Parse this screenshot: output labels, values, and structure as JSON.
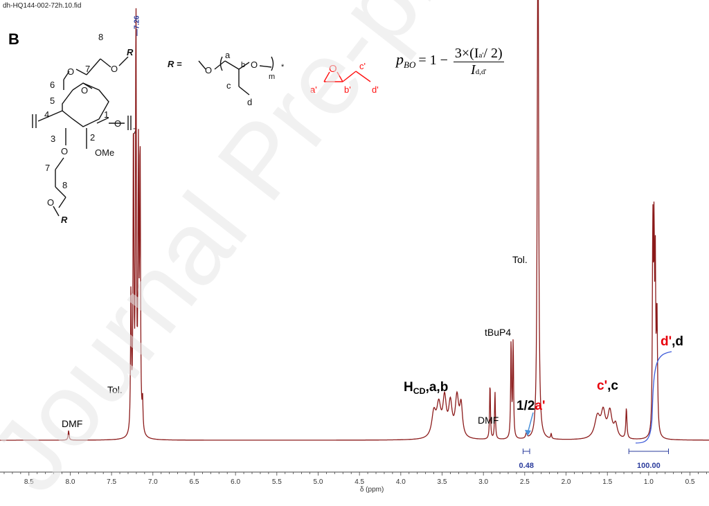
{
  "file_name": "dh-HQ144-002-72h.10.fid",
  "panel_label": "B",
  "watermark": "Journal Pre-proof",
  "formula": {
    "lhs": "p",
    "lhs_sub": "BO",
    "eq": "= 1 −",
    "numerator": "3×(I",
    "numerator_sub": "a'",
    "numerator_tail": "/ 2)",
    "denominator": "I",
    "denominator_sub": "d,d'"
  },
  "structure": {
    "r_label": "R",
    "r_def": "R =",
    "repeat_sub": "m",
    "end_star": "*",
    "ome": "OMe",
    "ring_sub": "7",
    "o": "O",
    "atoms_left": [
      "1",
      "2",
      "3",
      "4",
      "5",
      "6",
      "7",
      "8",
      "7",
      "8"
    ],
    "atoms_r": [
      "a",
      "b",
      "c",
      "d"
    ],
    "atoms_epoxide": [
      "a'",
      "b'",
      "c'",
      "d'"
    ]
  },
  "chart_data": {
    "type": "line",
    "title": "",
    "xlabel": "δ (ppm)",
    "ylabel": "",
    "xlim": [
      8.85,
      0.27
    ],
    "x_reversed": true,
    "x_ticks": [
      "8.5",
      "8.0",
      "7.5",
      "7.0",
      "6.5",
      "6.0",
      "5.5",
      "5.0",
      "4.5",
      "4.0",
      "3.5",
      "3.0",
      "2.5",
      "2.0",
      "1.5",
      "1.0",
      "0.5"
    ],
    "grid": false,
    "peak_top_label": "7.26",
    "series": [
      {
        "peaks": [
          {
            "ppm": 8.02,
            "h": 0.022,
            "w": 0.007
          },
          {
            "ppm": 7.265,
            "h": 0.33,
            "w": 0.006
          },
          {
            "ppm": 7.235,
            "h": 0.72,
            "w": 0.006
          },
          {
            "ppm": 7.205,
            "h": 0.98,
            "w": 0.006
          },
          {
            "ppm": 7.175,
            "h": 0.62,
            "w": 0.006
          },
          {
            "ppm": 7.155,
            "h": 0.66,
            "w": 0.006
          },
          {
            "ppm": 7.125,
            "h": 0.07,
            "w": 0.006
          },
          {
            "ppm": 3.6,
            "h": 0.055,
            "w": 0.03
          },
          {
            "ppm": 3.54,
            "h": 0.07,
            "w": 0.03
          },
          {
            "ppm": 3.47,
            "h": 0.085,
            "w": 0.025
          },
          {
            "ppm": 3.4,
            "h": 0.075,
            "w": 0.025
          },
          {
            "ppm": 3.32,
            "h": 0.09,
            "w": 0.025
          },
          {
            "ppm": 3.27,
            "h": 0.07,
            "w": 0.02
          },
          {
            "ppm": 2.92,
            "h": 0.13,
            "w": 0.006
          },
          {
            "ppm": 2.86,
            "h": 0.11,
            "w": 0.006
          },
          {
            "ppm": 2.665,
            "h": 0.225,
            "w": 0.006
          },
          {
            "ppm": 2.64,
            "h": 0.225,
            "w": 0.006
          },
          {
            "ppm": 2.48,
            "h": 0.012,
            "w": 0.01
          },
          {
            "ppm": 2.34,
            "h": 1.5,
            "w": 0.008
          },
          {
            "ppm": 2.18,
            "h": 0.012,
            "w": 0.006
          },
          {
            "ppm": 1.62,
            "h": 0.05,
            "w": 0.04
          },
          {
            "ppm": 1.55,
            "h": 0.055,
            "w": 0.03
          },
          {
            "ppm": 1.47,
            "h": 0.06,
            "w": 0.03
          },
          {
            "ppm": 1.4,
            "h": 0.03,
            "w": 0.025
          },
          {
            "ppm": 1.27,
            "h": 0.07,
            "w": 0.008
          },
          {
            "ppm": 0.95,
            "h": 0.47,
            "w": 0.006
          },
          {
            "ppm": 0.935,
            "h": 0.43,
            "w": 0.006
          },
          {
            "ppm": 0.92,
            "h": 0.36,
            "w": 0.006
          },
          {
            "ppm": 0.9,
            "h": 0.28,
            "w": 0.008
          }
        ]
      }
    ],
    "annotations": [
      {
        "text": "DMF",
        "ppm": 8.02
      },
      {
        "text": "Tol.",
        "ppm": 7.45
      },
      {
        "text": "Tol.",
        "ppm": 2.42
      },
      {
        "text": "tBuP4",
        "ppm": 2.72
      },
      {
        "text": "DMF",
        "ppm": 2.95
      },
      {
        "text": "H",
        "sub": "CD",
        "tail": ",a,b",
        "ppm": 3.6
      },
      {
        "text": "1/2",
        "red": "a'",
        "ppm": 2.35
      },
      {
        "red": "c'",
        "tail": ",c",
        "ppm": 1.5
      },
      {
        "red": "d'",
        "tail": ",d",
        "ppm": 0.82
      }
    ],
    "integrals": [
      {
        "range": [
          2.52,
          2.44
        ],
        "value": "0.48"
      },
      {
        "range": [
          1.24,
          0.76
        ],
        "value": "100.00"
      }
    ]
  }
}
